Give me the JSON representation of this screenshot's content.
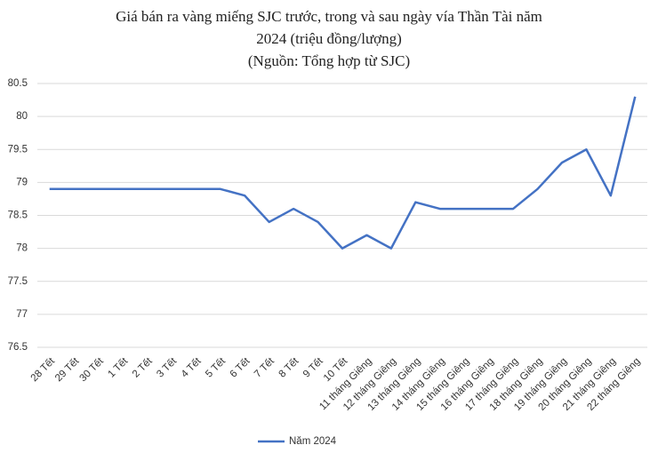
{
  "chart_data": {
    "type": "line",
    "title": [
      "Giá bán ra vàng miếng SJC trước, trong và sau ngày vía Thần Tài năm",
      "2024 (triệu đồng/lượng)",
      "(Nguồn: Tổng hợp từ SJC)"
    ],
    "categories": [
      "28 Tết",
      "29 Tết",
      "30 Tết",
      "1 Tết",
      "2 Tết",
      "3 Tết",
      "4 Tết",
      "5 Tết",
      "6 Tết",
      "7 Tết",
      "8 Tết",
      "9 Tết",
      "10 Tết",
      "11 tháng Giêng",
      "12 tháng Giêng",
      "13 tháng Giêng",
      "14 tháng Giêng",
      "15 tháng Giêng",
      "16 tháng Giêng",
      "17 tháng Giêng",
      "18 tháng Giêng",
      "19 tháng Giêng",
      "20 tháng Giêng",
      "21 tháng Giêng",
      "22 tháng Giêng"
    ],
    "series": [
      {
        "name": "Năm 2024",
        "color": "#4472c4",
        "values": [
          78.9,
          78.9,
          78.9,
          78.9,
          78.9,
          78.9,
          78.9,
          78.9,
          78.8,
          78.4,
          78.6,
          78.4,
          78.0,
          78.2,
          78.0,
          78.7,
          78.6,
          78.6,
          78.6,
          78.6,
          78.9,
          79.3,
          79.5,
          78.8,
          80.3
        ]
      }
    ],
    "ylim": [
      76.5,
      80.5
    ],
    "yticks": [
      76.5,
      77,
      77.5,
      78,
      78.5,
      79,
      79.5,
      80,
      80.5
    ],
    "grid": true,
    "legend": "bottom"
  }
}
